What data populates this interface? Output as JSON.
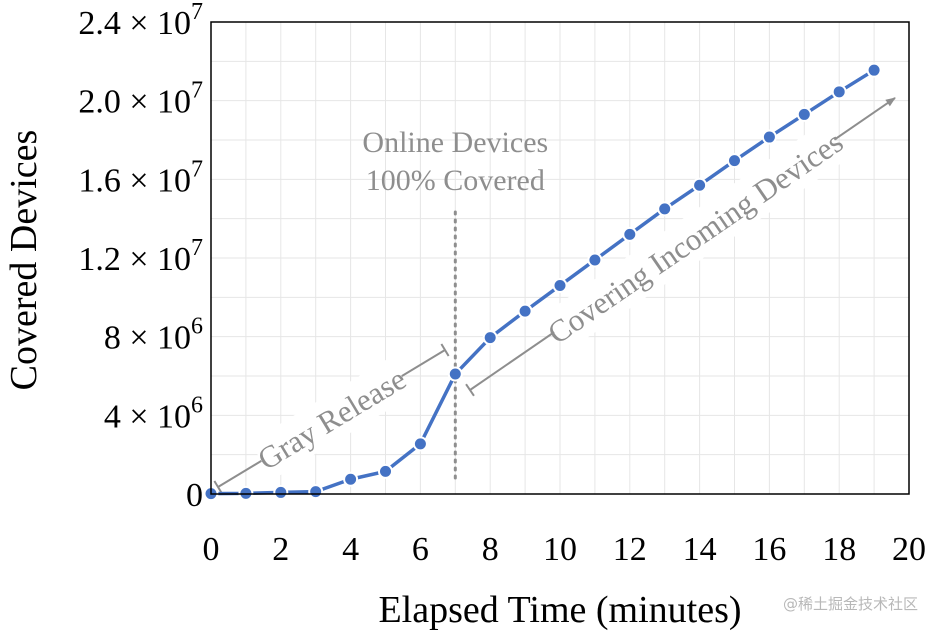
{
  "chart_data": {
    "type": "line",
    "xlabel": "Elapsed Time (minutes)",
    "ylabel": "Covered Devices",
    "xlim": [
      0,
      20
    ],
    "ylim": [
      0,
      24000000
    ],
    "x_ticks": [
      0,
      2,
      4,
      6,
      8,
      10,
      12,
      14,
      16,
      18,
      20
    ],
    "x_tick_labels": [
      "0",
      "2",
      "4",
      "6",
      "8",
      "10",
      "12",
      "14",
      "16",
      "18",
      "20"
    ],
    "y_ticks": [
      0,
      4000000,
      8000000,
      12000000,
      16000000,
      20000000,
      24000000
    ],
    "y_tick_labels": [
      {
        "mantissa": "0",
        "exp": ""
      },
      {
        "mantissa": "4 × 10",
        "exp": "6"
      },
      {
        "mantissa": "8 × 10",
        "exp": "6"
      },
      {
        "mantissa": "1.2 × 10",
        "exp": "7"
      },
      {
        "mantissa": "1.6 × 10",
        "exp": "7"
      },
      {
        "mantissa": "2.0 × 10",
        "exp": "7"
      },
      {
        "mantissa": "2.4 × 10",
        "exp": "7"
      }
    ],
    "grid": true,
    "series": [
      {
        "color": "#4472c4",
        "x": [
          0,
          1,
          2,
          3,
          4,
          5,
          6,
          7,
          8,
          9,
          10,
          11,
          12,
          13,
          14,
          15,
          16,
          17,
          18,
          19
        ],
        "y": [
          20000,
          30000,
          80000,
          120000,
          750000,
          1150000,
          2550000,
          6100000,
          7950000,
          9300000,
          10600000,
          11900000,
          13200000,
          14500000,
          15700000,
          16950000,
          18150000,
          19300000,
          20450000,
          21550000
        ]
      }
    ],
    "annotations": {
      "online_line1": "Online Devices",
      "online_line2": "100% Covered",
      "gray_release": "Gray Release",
      "covering": "Covering Incoming Devices",
      "online_x": 7
    }
  },
  "colors": {
    "line": "#4472c4",
    "annotation": "#8e8e8e",
    "grid": "#e6e6e6"
  },
  "watermark": "@稀土掘金技术社区"
}
